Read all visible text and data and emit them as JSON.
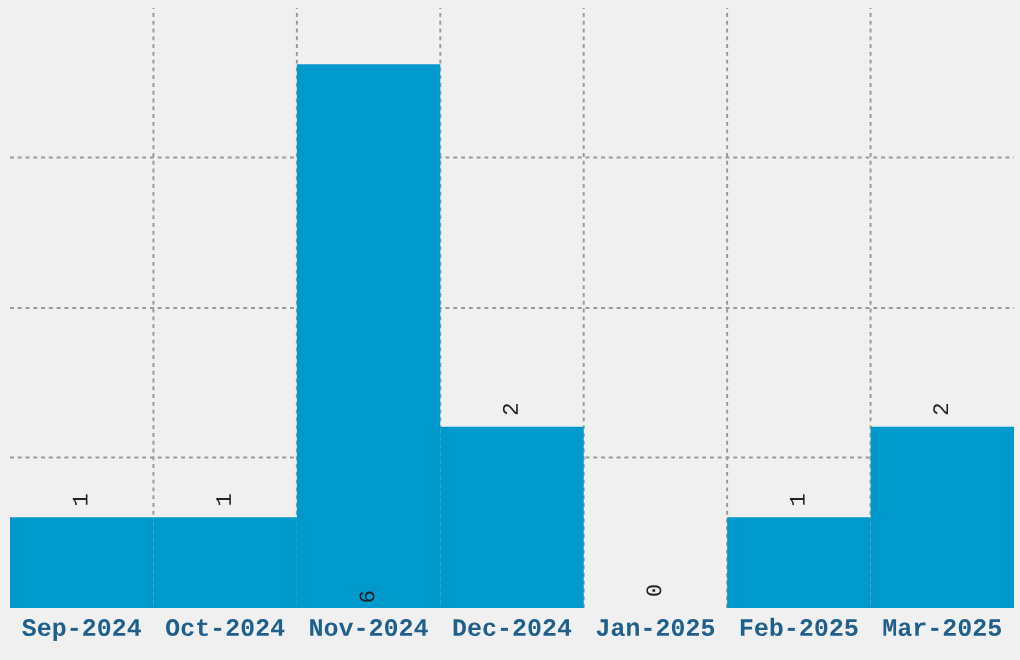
{
  "chart_data": {
    "type": "bar",
    "categories": [
      "Sep-2024",
      "Oct-2024",
      "Nov-2024",
      "Dec-2024",
      "Jan-2025",
      "Feb-2025",
      "Mar-2025"
    ],
    "values": [
      1,
      1,
      6,
      2,
      0,
      1,
      2
    ],
    "color": "#0099cc",
    "data_labels": true,
    "ylim": [
      0,
      6.62
    ],
    "yticks": [
      {
        "value": 1.66,
        "label": null
      },
      {
        "value": 3.31,
        "label": null
      },
      {
        "value": 4.97,
        "label": null
      }
    ],
    "tick_labels": "x",
    "grid": true
  }
}
